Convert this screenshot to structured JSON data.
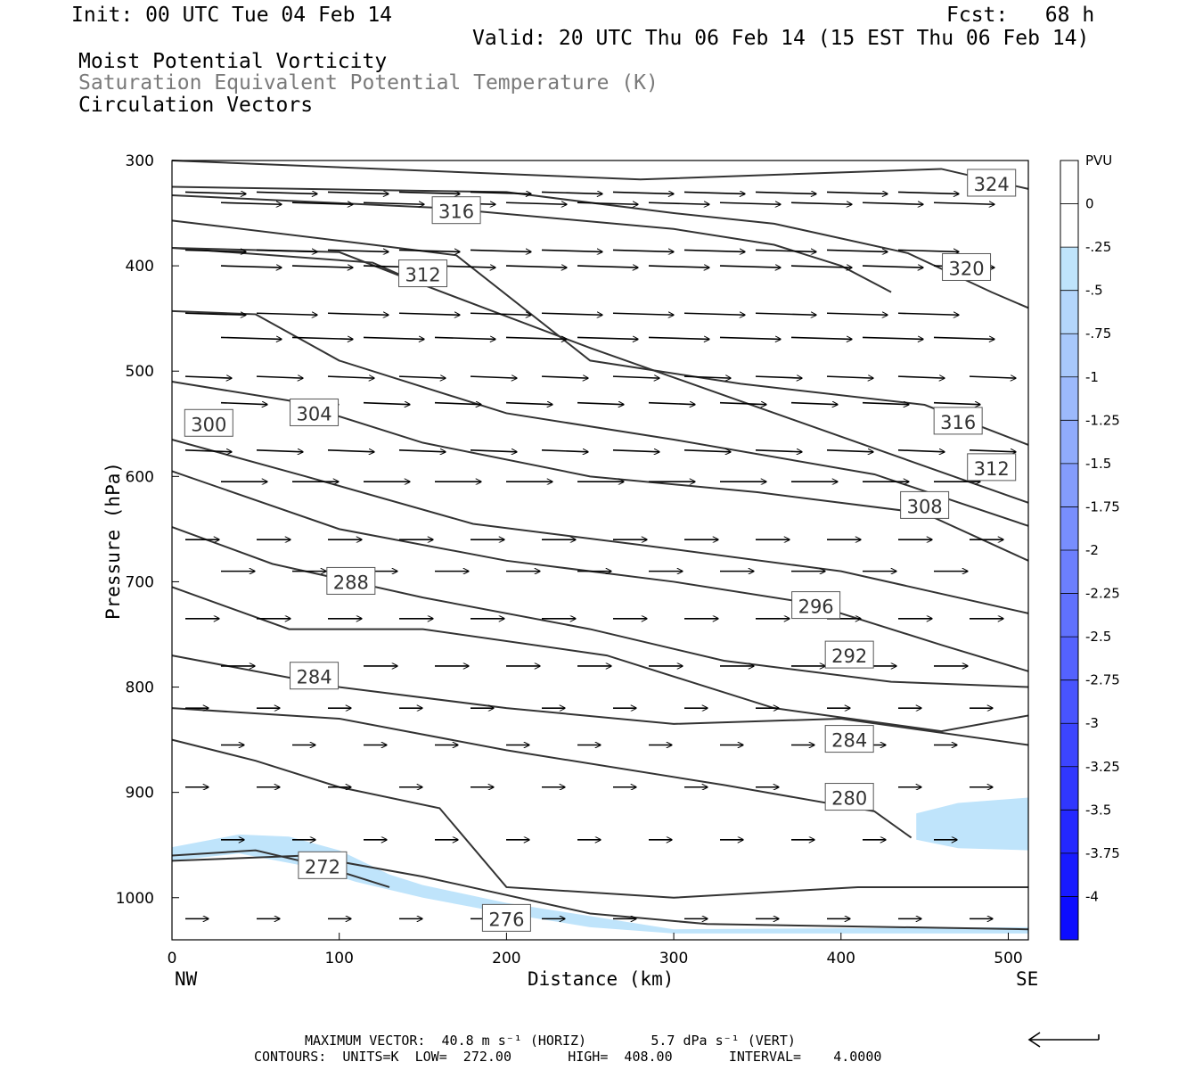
{
  "header": {
    "init": "Init: 00 UTC Tue 04 Feb 14",
    "fcst": "Fcst:   68 h",
    "valid": "Valid: 20 UTC Thu 06 Feb 14 (15 EST Thu 06 Feb 14)",
    "field1": "Moist Potential Vorticity",
    "field2": "Saturation Equivalent Potential Temperature (K)",
    "field3": "Circulation Vectors"
  },
  "chart_data": {
    "type": "cross-section",
    "xlabel": "Distance (km)",
    "ylabel": "Pressure (hPa)",
    "xlim": [
      0,
      512
    ],
    "ylim": [
      300,
      1040
    ],
    "xticks": [
      "0",
      "100",
      "200",
      "300",
      "400",
      "500"
    ],
    "xtick_values": [
      0,
      100,
      200,
      300,
      400,
      500
    ],
    "yticks": [
      "300",
      "400",
      "500",
      "600",
      "700",
      "800",
      "900",
      "1000"
    ],
    "ytick_values": [
      300,
      400,
      500,
      600,
      700,
      800,
      900,
      1000
    ],
    "endpoint_left": "NW",
    "endpoint_right": "SE",
    "colorbar": {
      "title": "PVU",
      "labels": [
        "0",
        "-.25",
        "-.5",
        "-.75",
        "-1",
        "-1.25",
        "-1.5",
        "-1.75",
        "-2",
        "-2.25",
        "-2.5",
        "-2.75",
        "-3",
        "-3.25",
        "-3.5",
        "-3.75",
        "-4"
      ],
      "colors": [
        "#ffffff",
        "#ffffff",
        "#bfe4fb",
        "#b4d6fb",
        "#a8c8fb",
        "#9cb9fc",
        "#90abfc",
        "#849cfc",
        "#788efd",
        "#6c7ffd",
        "#6071fd",
        "#5462fe",
        "#4854fe",
        "#3c45fe",
        "#3037fe",
        "#2428ff",
        "#181aff",
        "#0c0cff"
      ]
    },
    "contour_labels": [
      "272",
      "276",
      "280",
      "284",
      "288",
      "292",
      "296",
      "300",
      "304",
      "308",
      "312",
      "316",
      "320",
      "324"
    ],
    "contours": [
      {
        "label": "324",
        "points": [
          [
            0,
            300
          ],
          [
            280,
            318
          ],
          [
            460,
            308
          ],
          [
            512,
            327
          ]
        ],
        "label_at": [
          490,
          322
        ]
      },
      {
        "label": "320",
        "points": [
          [
            0,
            325
          ],
          [
            200,
            330
          ],
          [
            300,
            350
          ],
          [
            360,
            360
          ],
          [
            440,
            388
          ],
          [
            490,
            425
          ],
          [
            512,
            440
          ]
        ],
        "label_at": [
          475,
          402
        ]
      },
      {
        "label": "316a",
        "points": [
          [
            0,
            357
          ],
          [
            120,
            380
          ],
          [
            170,
            390
          ],
          [
            250,
            490
          ],
          [
            340,
            512
          ],
          [
            450,
            532
          ],
          [
            512,
            570
          ]
        ],
        "label_at": [
          470,
          548
        ]
      },
      {
        "label": "316b",
        "points": [
          [
            0,
            333
          ],
          [
            160,
            345
          ],
          [
            300,
            365
          ],
          [
            360,
            380
          ],
          [
            400,
            400
          ],
          [
            430,
            425
          ]
        ],
        "label_at": [
          170,
          348
        ]
      },
      {
        "label": "312a",
        "points": [
          [
            0,
            383
          ],
          [
            100,
            387
          ],
          [
            150,
            418
          ],
          [
            200,
            448
          ],
          [
            250,
            478
          ],
          [
            512,
            625
          ]
        ],
        "label_at": [
          490,
          592
        ]
      },
      {
        "label": "312b",
        "points": [
          [
            0,
            383
          ],
          [
            120,
            397
          ],
          [
            150,
            418
          ]
        ],
        "label_at": [
          150,
          408
        ]
      },
      {
        "label": "308",
        "points": [
          [
            0,
            443
          ],
          [
            50,
            446
          ],
          [
            100,
            490
          ],
          [
            200,
            540
          ],
          [
            300,
            565
          ],
          [
            420,
            598
          ],
          [
            512,
            647
          ]
        ],
        "label_at": [
          450,
          628
        ]
      },
      {
        "label": "304",
        "points": [
          [
            0,
            510
          ],
          [
            70,
            528
          ],
          [
            150,
            568
          ],
          [
            250,
            600
          ],
          [
            350,
            615
          ],
          [
            450,
            635
          ],
          [
            512,
            680
          ]
        ],
        "label_at": [
          85,
          540
        ]
      },
      {
        "label": "300",
        "points": [
          [
            0,
            565
          ],
          [
            80,
            600
          ],
          [
            180,
            645
          ],
          [
            280,
            665
          ],
          [
            400,
            690
          ],
          [
            512,
            730
          ]
        ],
        "label_at": [
          22,
          550
        ]
      },
      {
        "label": "296",
        "points": [
          [
            0,
            595
          ],
          [
            100,
            650
          ],
          [
            200,
            680
          ],
          [
            300,
            700
          ],
          [
            380,
            720
          ],
          [
            460,
            760
          ],
          [
            512,
            785
          ]
        ],
        "label_at": [
          385,
          723
        ]
      },
      {
        "label": "292",
        "points": [
          [
            0,
            648
          ],
          [
            60,
            683
          ],
          [
            150,
            715
          ],
          [
            250,
            745
          ],
          [
            330,
            775
          ],
          [
            430,
            795
          ],
          [
            512,
            800
          ]
        ],
        "label_at": [
          405,
          770
        ]
      },
      {
        "label": "288",
        "points": [
          [
            0,
            705
          ],
          [
            70,
            745
          ],
          [
            150,
            745
          ],
          [
            260,
            770
          ],
          [
            360,
            820
          ],
          [
            460,
            842
          ],
          [
            512,
            827
          ]
        ],
        "label_at": [
          107,
          700
        ]
      },
      {
        "label": "284a",
        "points": [
          [
            0,
            770
          ],
          [
            100,
            800
          ],
          [
            200,
            820
          ],
          [
            300,
            835
          ],
          [
            400,
            830
          ],
          [
            512,
            855
          ]
        ],
        "label_at": [
          85,
          790
        ]
      },
      {
        "label": "284b",
        "points": [
          [
            0,
            820
          ],
          [
            100,
            830
          ],
          [
            200,
            860
          ],
          [
            330,
            893
          ],
          [
            420,
            918
          ],
          [
            442,
            943
          ]
        ],
        "label_at": [
          405,
          850
        ]
      },
      {
        "label": "280",
        "points": [
          [
            0,
            850
          ],
          [
            50,
            870
          ],
          [
            100,
            895
          ],
          [
            160,
            915
          ],
          [
            200,
            990
          ],
          [
            300,
            1000
          ],
          [
            410,
            990
          ],
          [
            512,
            990
          ]
        ],
        "label_at": [
          405,
          905
        ]
      },
      {
        "label": "276",
        "points": [
          [
            0,
            965
          ],
          [
            80,
            960
          ],
          [
            150,
            980
          ],
          [
            250,
            1015
          ],
          [
            320,
            1025
          ],
          [
            512,
            1030
          ]
        ],
        "label_at": [
          200,
          1020
        ]
      },
      {
        "label": "272",
        "points": [
          [
            0,
            960
          ],
          [
            50,
            955
          ],
          [
            90,
            970
          ],
          [
            130,
            990
          ]
        ],
        "label_at": [
          90,
          970
        ]
      }
    ],
    "shading": [
      {
        "value": "-0.25 to -0.5",
        "region": "near-surface NW band, 940-1030 hPa, 0-300 km"
      },
      {
        "value": "-0.25 to -0.5",
        "region": "SE 910-955 hPa, 445-512 km"
      }
    ],
    "vector_rows_hpa": [
      330,
      340,
      385,
      400,
      445,
      468,
      505,
      530,
      575,
      605,
      660,
      690,
      735,
      780,
      820,
      855,
      895,
      945,
      1020
    ]
  },
  "footer": {
    "max_vector": "MAXIMUM VECTOR:  40.8 m s⁻¹ (HORIZ)        5.7 dPa s⁻¹ (VERT)",
    "contours": "CONTOURS:  UNITS=K  LOW=  272.00       HIGH=  408.00       INTERVAL=    4.0000"
  }
}
